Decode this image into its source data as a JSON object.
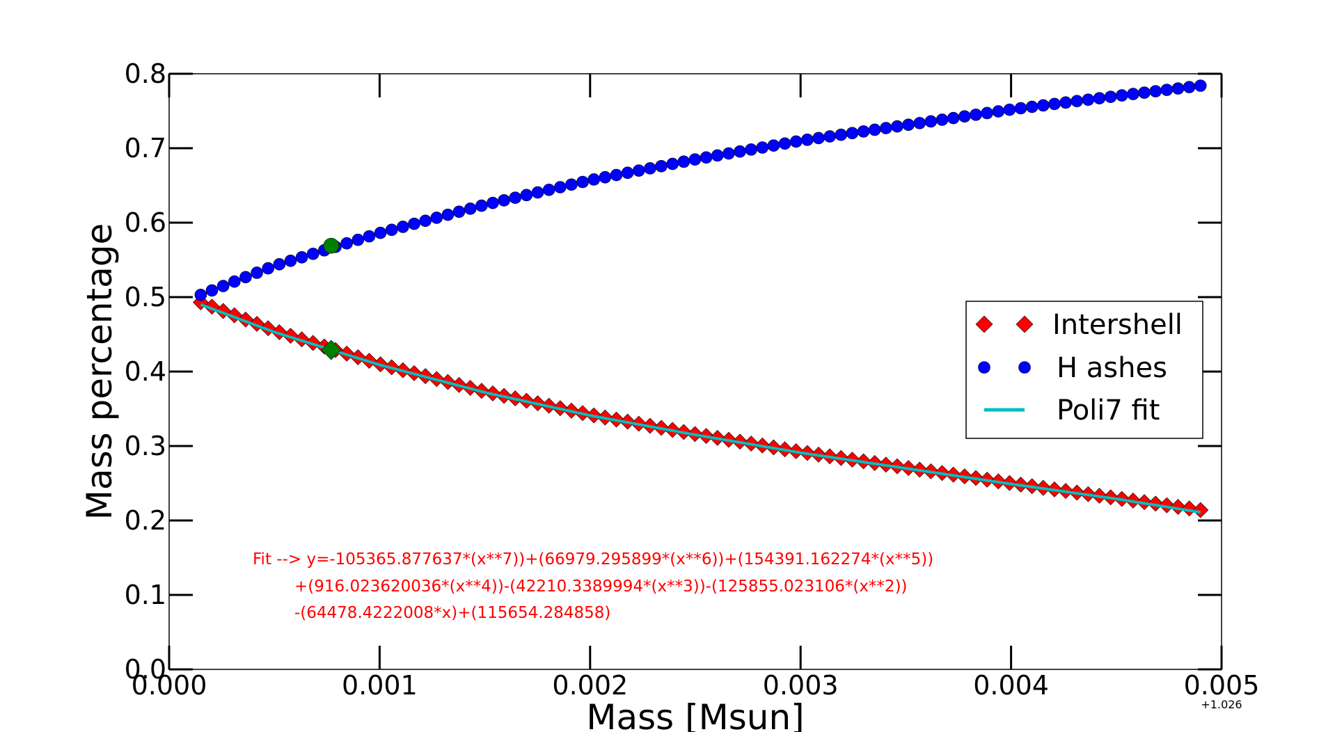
{
  "chart_data": {
    "type": "scatter",
    "title": "",
    "xlabel": "Mass [Msun]",
    "ylabel": "Mass percentage",
    "x_offset_label": "+1.026",
    "xlim": [
      0.0,
      0.005
    ],
    "ylim": [
      0.0,
      0.8
    ],
    "x_ticks": [
      "0.000",
      "0.001",
      "0.002",
      "0.003",
      "0.004",
      "0.005"
    ],
    "y_ticks": [
      "0.0",
      "0.1",
      "0.2",
      "0.3",
      "0.4",
      "0.5",
      "0.6",
      "0.7",
      "0.8"
    ],
    "grid": false,
    "legend_position": "center-right",
    "series": [
      {
        "name": "Intershell",
        "marker": "diamond",
        "color": "#ff0000",
        "x_start": 0.00015,
        "x_end": 0.0049,
        "n_points": 90,
        "x": [
          0.00015,
          0.0005,
          0.001,
          0.0015,
          0.002,
          0.0025,
          0.003,
          0.0035,
          0.004,
          0.0045,
          0.0049
        ],
        "y": [
          0.493,
          0.455,
          0.41,
          0.373,
          0.342,
          0.316,
          0.292,
          0.271,
          0.25,
          0.23,
          0.214
        ]
      },
      {
        "name": "H ashes",
        "marker": "circle",
        "color": "#0000ff",
        "x_start": 0.00015,
        "x_end": 0.0049,
        "n_points": 90,
        "x": [
          0.00015,
          0.0005,
          0.001,
          0.0015,
          0.002,
          0.0025,
          0.003,
          0.0035,
          0.004,
          0.0045,
          0.0049
        ],
        "y": [
          0.503,
          0.542,
          0.586,
          0.624,
          0.657,
          0.685,
          0.71,
          0.731,
          0.752,
          0.77,
          0.784
        ]
      },
      {
        "name": "Poli7 fit",
        "marker": "line",
        "color": "#00bfbf",
        "x": [
          0.00015,
          0.0005,
          0.001,
          0.0015,
          0.002,
          0.0025,
          0.003,
          0.0035,
          0.004,
          0.0045,
          0.0049
        ],
        "y": [
          0.49,
          0.453,
          0.409,
          0.372,
          0.341,
          0.315,
          0.291,
          0.27,
          0.249,
          0.229,
          0.211
        ]
      }
    ],
    "highlight_points": [
      {
        "x": 0.00077,
        "y": 0.569,
        "marker": "circle",
        "color": "#008000"
      },
      {
        "x": 0.00077,
        "y": 0.429,
        "marker": "diamond",
        "color": "#008000"
      }
    ],
    "annotation": {
      "color": "#ff0000",
      "lines": [
        "Fit --> y=-105365.877637*(x**7))+(66979.295899*(x**6))+(154391.162274*(x**5))",
        "+(916.023620036*(x**4))-(42210.3389994*(x**3))-(125855.023106*(x**2))",
        "-(64478.4222008*x)+(115654.284858)"
      ]
    }
  }
}
